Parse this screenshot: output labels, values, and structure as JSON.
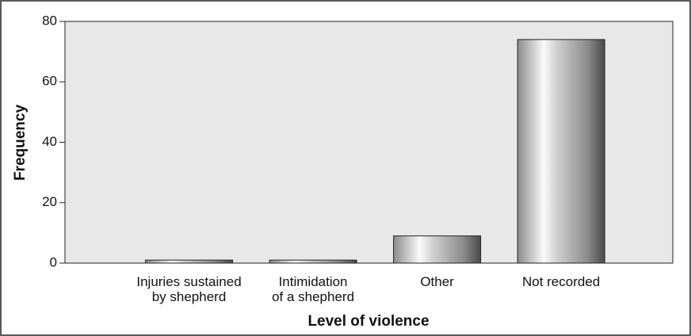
{
  "chart_data": {
    "type": "bar",
    "xlabel": "Level of violence",
    "ylabel": "Frequency",
    "categories": [
      "Injuries sustained\nby shepherd",
      "Intimidation\nof a shepherd",
      "Other",
      "Not recorded"
    ],
    "values": [
      1,
      1,
      9,
      74
    ],
    "ylim": [
      0,
      80
    ],
    "yticks": [
      0,
      20,
      40,
      60,
      80
    ],
    "grid": false
  }
}
